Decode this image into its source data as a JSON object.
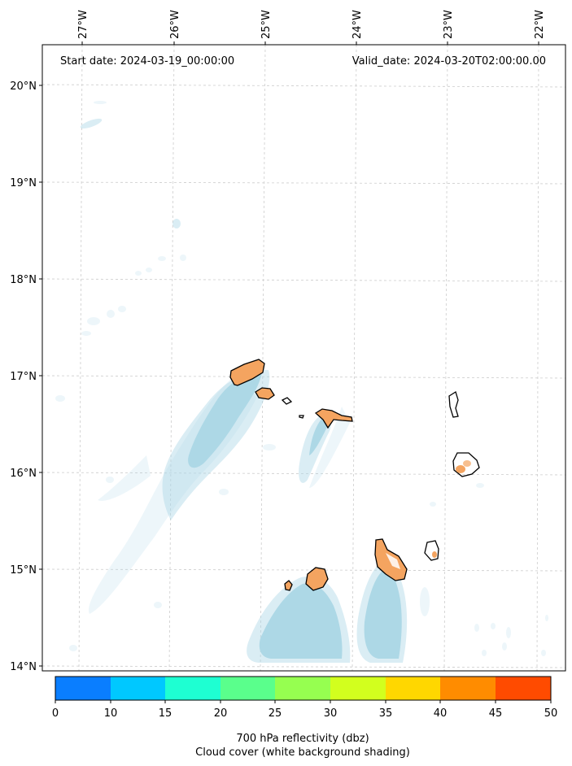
{
  "map": {
    "start_label": "Start date: 2024-03-19_00:00:00",
    "valid_label": "Valid_date: 2024-03-20T02:00:00.00",
    "lon_labels": [
      "27°W",
      "26°W",
      "25°W",
      "24°W",
      "23°W",
      "22°W"
    ],
    "lat_labels": [
      "20°N",
      "19°N",
      "18°N",
      "17°N",
      "16°N",
      "15°N",
      "14°N"
    ],
    "gridlines": true,
    "shading_color": "#add8e6"
  },
  "colorbar": {
    "ticks": [
      "0",
      "10",
      "15",
      "20",
      "25",
      "30",
      "35",
      "40",
      "45",
      "50"
    ],
    "colors": [
      "#0a7eff",
      "#00c8ff",
      "#1effd2",
      "#5aff8c",
      "#96ff50",
      "#d2ff1e",
      "#ffd700",
      "#ff8c00",
      "#ff4b00"
    ],
    "label_line1": "700 hPa reflectivity (dbz)",
    "label_line2": "Cloud cover (white background shading)"
  }
}
